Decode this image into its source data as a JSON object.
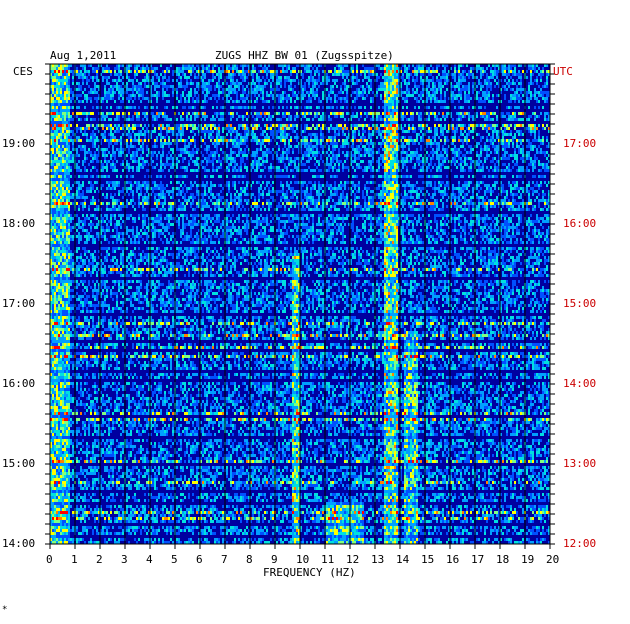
{
  "header": {
    "date": "Aug 1,2011",
    "station": "ZUGS HHZ BW 01 (Zugsspitze)",
    "left_tz": "CES",
    "right_tz": "UTC"
  },
  "footer_mark": "*",
  "colors": {
    "background": "#0000a0",
    "grid": "#000000",
    "right_labels": "#cc0000"
  },
  "chart_data": {
    "type": "heatmap",
    "title": "ZUGS HHZ BW 01 (Zugsspitze)",
    "xlabel": "FREQUENCY (HZ)",
    "ylabel": "",
    "xlim": [
      0,
      20
    ],
    "x_ticks": [
      "0",
      "1",
      "2",
      "3",
      "4",
      "5",
      "6",
      "7",
      "8",
      "9",
      "10",
      "11",
      "12",
      "13",
      "14",
      "15",
      "16",
      "17",
      "18",
      "19",
      "20"
    ],
    "y_ticks_left": [
      "19:00",
      "18:00",
      "17:00",
      "16:00",
      "15:00",
      "14:00"
    ],
    "y_ticks_right": [
      "17:00",
      "16:00",
      "15:00",
      "14:00",
      "13:00",
      "12:00"
    ],
    "colorscale": [
      "#0000a0",
      "#0010d0",
      "#0050ff",
      "#00a0ff",
      "#00e0e0",
      "#80ff80",
      "#ffff00",
      "#ff8000",
      "#ff0000"
    ],
    "grid": true
  }
}
